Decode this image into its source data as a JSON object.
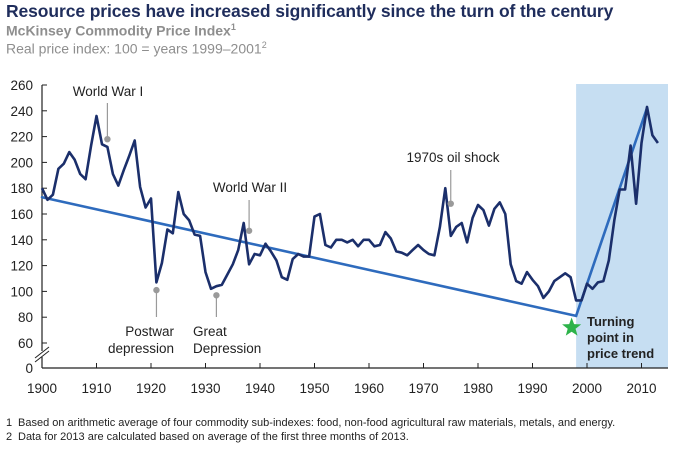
{
  "header": {
    "title": "Resource prices have increased significantly since the turn of the century",
    "subtitle": "McKinsey Commodity Price Index",
    "subtitle_sup": "1",
    "subtitle2": "Real price index: 100 = years 1999–2001",
    "subtitle2_sup": "2"
  },
  "chart_data": {
    "type": "line",
    "title": "McKinsey Commodity Price Index",
    "xlabel": "",
    "ylabel": "Real price index: 100 = years 1999–2001",
    "xlim": [
      1900,
      2014
    ],
    "ylim": [
      60,
      260
    ],
    "y_axis_break": "between 0 and 60",
    "y_ticks": [
      "0",
      "60",
      "80",
      "100",
      "120",
      "140",
      "160",
      "180",
      "200",
      "220",
      "240",
      "260"
    ],
    "x_ticks": [
      "1900",
      "1910",
      "1920",
      "1930",
      "1940",
      "1950",
      "1960",
      "1970",
      "1980",
      "1990",
      "2000",
      "2010"
    ],
    "grid": false,
    "series": [
      {
        "name": "McKinsey Commodity Price Index",
        "color": "#1b2f6b",
        "x": [
          1900,
          1901,
          1902,
          1903,
          1904,
          1905,
          1906,
          1907,
          1908,
          1909,
          1910,
          1911,
          1912,
          1913,
          1914,
          1915,
          1916,
          1917,
          1918,
          1919,
          1920,
          1921,
          1922,
          1923,
          1924,
          1925,
          1926,
          1927,
          1928,
          1929,
          1930,
          1931,
          1932,
          1933,
          1934,
          1935,
          1936,
          1937,
          1938,
          1939,
          1940,
          1941,
          1942,
          1943,
          1944,
          1945,
          1946,
          1947,
          1948,
          1949,
          1950,
          1951,
          1952,
          1953,
          1954,
          1955,
          1956,
          1957,
          1958,
          1959,
          1960,
          1961,
          1962,
          1963,
          1964,
          1965,
          1966,
          1967,
          1968,
          1969,
          1970,
          1971,
          1972,
          1973,
          1974,
          1975,
          1976,
          1977,
          1978,
          1979,
          1980,
          1981,
          1982,
          1983,
          1984,
          1985,
          1986,
          1987,
          1988,
          1989,
          1990,
          1991,
          1992,
          1993,
          1994,
          1995,
          1996,
          1997,
          1998,
          1999,
          2000,
          2001,
          2002,
          2003,
          2004,
          2005,
          2006,
          2007,
          2008,
          2009,
          2010,
          2011,
          2012,
          2013
        ],
        "values": [
          180,
          171,
          175,
          195,
          199,
          208,
          202,
          191,
          187,
          213,
          236,
          214,
          212,
          191,
          182,
          194,
          205,
          217,
          181,
          165,
          172,
          107,
          122,
          148,
          145,
          177,
          160,
          155,
          144,
          143,
          115,
          102,
          104,
          105,
          113,
          121,
          132,
          153,
          121,
          129,
          128,
          137,
          131,
          124,
          111,
          109,
          125,
          129,
          127,
          127,
          158,
          160,
          136,
          134,
          140,
          140,
          138,
          140,
          135,
          140,
          140,
          135,
          136,
          146,
          141,
          131,
          130,
          128,
          132,
          136,
          132,
          129,
          128,
          150,
          180,
          143,
          150,
          153,
          138,
          157,
          167,
          163,
          151,
          164,
          169,
          160,
          121,
          108,
          106,
          115,
          109,
          104,
          95,
          100,
          108,
          111,
          114,
          111,
          93,
          93,
          106,
          102,
          107,
          108,
          124,
          155,
          179,
          179,
          213,
          168,
          215,
          243,
          221,
          215
        ]
      },
      {
        "name": "Long-term trend (declining)",
        "color": "#2e6bbd",
        "x": [
          1900,
          1998
        ],
        "values": [
          173,
          81
        ]
      },
      {
        "name": "Trend since turning point (rising)",
        "color": "#2e6bbd",
        "x": [
          1998,
          2011
        ],
        "values": [
          81,
          242
        ]
      }
    ],
    "highlight_region": {
      "x": [
        1998,
        2014
      ],
      "color": "#c6def2"
    },
    "annotations": [
      {
        "text": "World War I",
        "x": 1912,
        "y": 218
      },
      {
        "text": "Postwar depression",
        "x": 1921,
        "y": 101
      },
      {
        "text": "Great Depression",
        "x": 1932,
        "y": 97
      },
      {
        "text": "World War II",
        "x": 1938,
        "y": 147
      },
      {
        "text": "1970s oil shock",
        "x": 1975,
        "y": 168
      },
      {
        "text": "Turning point in price trend",
        "x": 1997,
        "y": 72,
        "marker": "star",
        "marker_color": "#2db34a"
      }
    ],
    "legend": "none"
  },
  "footnotes": [
    {
      "num": "1",
      "text": "Based on arithmetic average of four commodity sub-indexes: food, non-food agricultural raw materials, metals, and energy."
    },
    {
      "num": "2",
      "text": "Data for 2013 are calculated based on average of the first three months of 2013."
    }
  ]
}
